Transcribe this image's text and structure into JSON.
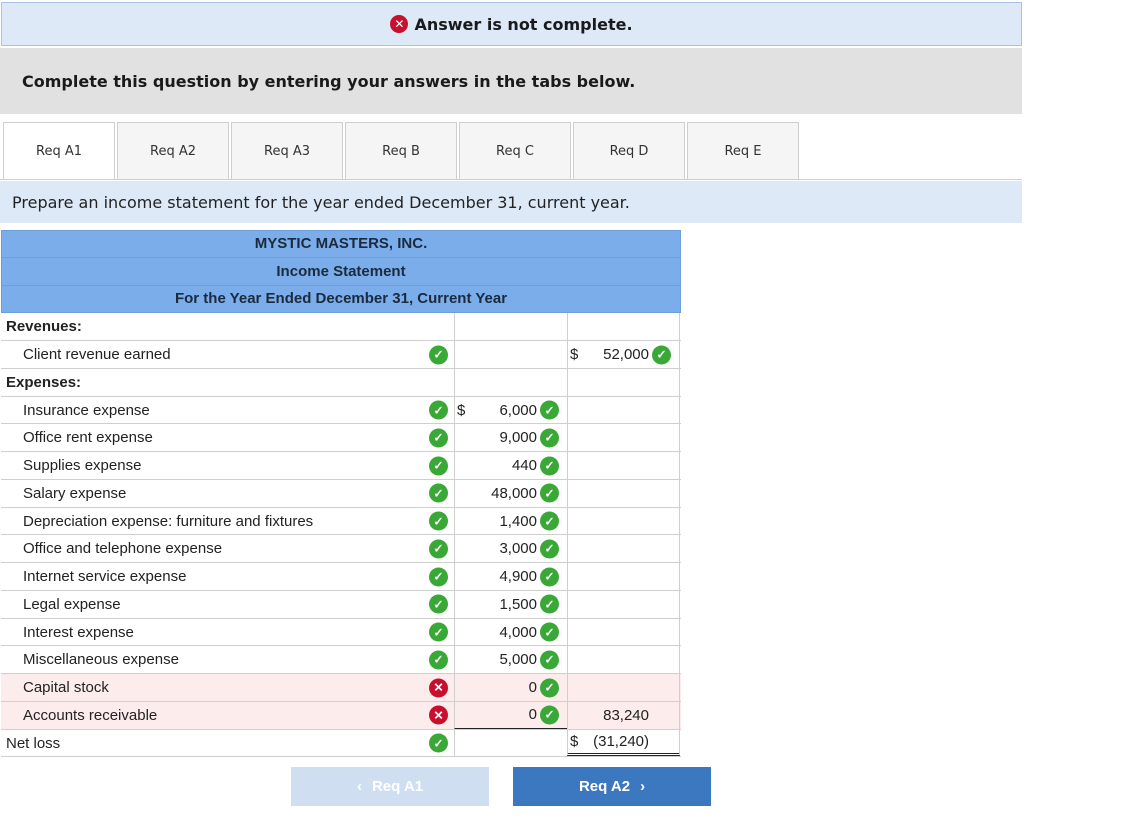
{
  "banner": {
    "text": "Answer is not complete.",
    "icon": "x-circle-icon"
  },
  "prompt": "Complete this question by entering your answers in the tabs below.",
  "tabs": [
    "Req A1",
    "Req A2",
    "Req A3",
    "Req B",
    "Req C",
    "Req D",
    "Req E"
  ],
  "active_tab": "Req A1",
  "instruction": "Prepare an income statement for the year ended December 31, current year.",
  "statement": {
    "company": "MYSTIC MASTERS, INC.",
    "title": "Income Statement",
    "period": "For the Year Ended December 31, Current Year",
    "revenues_label": "Revenues:",
    "revenue_item": {
      "label": "Client revenue earned",
      "dollar": "$",
      "value": "52,000"
    },
    "expenses_label": "Expenses:",
    "expenses": [
      {
        "label": "Insurance expense",
        "dollar": "$",
        "value": "6,000",
        "label_ok": true,
        "value_ok": true
      },
      {
        "label": "Office rent expense",
        "dollar": "",
        "value": "9,000",
        "label_ok": true,
        "value_ok": true
      },
      {
        "label": "Supplies expense",
        "dollar": "",
        "value": "440",
        "label_ok": true,
        "value_ok": true
      },
      {
        "label": "Salary expense",
        "dollar": "",
        "value": "48,000",
        "label_ok": true,
        "value_ok": true
      },
      {
        "label": "Depreciation expense: furniture and fixtures",
        "dollar": "",
        "value": "1,400",
        "label_ok": true,
        "value_ok": true
      },
      {
        "label": "Office and telephone expense",
        "dollar": "",
        "value": "3,000",
        "label_ok": true,
        "value_ok": true
      },
      {
        "label": "Internet service expense",
        "dollar": "",
        "value": "4,900",
        "label_ok": true,
        "value_ok": true
      },
      {
        "label": "Legal expense",
        "dollar": "",
        "value": "1,500",
        "label_ok": true,
        "value_ok": true
      },
      {
        "label": "Interest expense",
        "dollar": "",
        "value": "4,000",
        "label_ok": true,
        "value_ok": true
      },
      {
        "label": "Miscellaneous expense",
        "dollar": "",
        "value": "5,000",
        "label_ok": true,
        "value_ok": true
      },
      {
        "label": "Capital stock",
        "dollar": "",
        "value": "0",
        "label_ok": false,
        "value_ok": true
      },
      {
        "label": "Accounts receivable",
        "dollar": "",
        "value": "0",
        "label_ok": false,
        "value_ok": true
      }
    ],
    "total_expenses": "83,240",
    "net_label": "Net loss",
    "net_value": "(31,240)",
    "net_dollar": "$"
  },
  "nav": {
    "prev": "Req A1",
    "next": "Req A2"
  },
  "colors": {
    "correct": "#3aa836",
    "incorrect": "#c8102e",
    "header": "#7badea",
    "next_button": "#3c78c0"
  }
}
